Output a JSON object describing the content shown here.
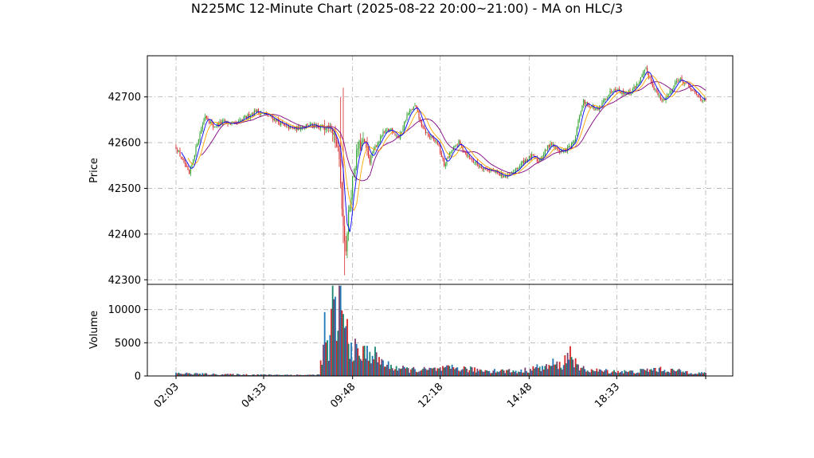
{
  "chart_data": {
    "type": "candlestick",
    "title": "N225MC 12-Minute Chart (2025-08-22 20:00~21:00) - MA on HLC/3",
    "price_panel": {
      "ylabel": "Price",
      "yticks": [
        42300,
        42400,
        42500,
        42600,
        42700
      ],
      "ylim": [
        42290,
        42790
      ],
      "grid": true
    },
    "volume_panel": {
      "ylabel": "Volume",
      "yticks": [
        0,
        5000,
        10000
      ],
      "ylim": [
        0,
        13800
      ],
      "grid": true
    },
    "x_ticks": [
      "02:03",
      "04:33",
      "09:48",
      "12:18",
      "14:48",
      "18:33"
    ],
    "colors": {
      "up": "#2ca02c",
      "down": "#d62728",
      "ma_fast": "#0000ff",
      "ma_mid": "#ffa500",
      "ma_slow": "#800080",
      "volume_a": "#1f77b4",
      "volume_b": "#d62728",
      "volume_c": "#17856f",
      "volume_d": "#7b3f6e"
    },
    "price_anchors": [
      [
        0,
        42590
      ],
      [
        5,
        42560
      ],
      [
        10,
        42530
      ],
      [
        16,
        42600
      ],
      [
        22,
        42660
      ],
      [
        28,
        42635
      ],
      [
        35,
        42645
      ],
      [
        45,
        42640
      ],
      [
        55,
        42660
      ],
      [
        60,
        42670
      ],
      [
        68,
        42660
      ],
      [
        75,
        42650
      ],
      [
        82,
        42635
      ],
      [
        90,
        42630
      ],
      [
        100,
        42640
      ],
      [
        108,
        42630
      ],
      [
        116,
        42650
      ],
      [
        120,
        42610
      ],
      [
        123,
        42560
      ],
      [
        126,
        42420
      ],
      [
        128,
        42370
      ],
      [
        130,
        42440
      ],
      [
        133,
        42520
      ],
      [
        137,
        42590
      ],
      [
        142,
        42600
      ],
      [
        146,
        42560
      ],
      [
        150,
        42590
      ],
      [
        156,
        42620
      ],
      [
        162,
        42630
      ],
      [
        168,
        42610
      ],
      [
        174,
        42660
      ],
      [
        180,
        42680
      ],
      [
        186,
        42630
      ],
      [
        192,
        42610
      ],
      [
        197,
        42600
      ],
      [
        202,
        42550
      ],
      [
        207,
        42580
      ],
      [
        213,
        42600
      ],
      [
        220,
        42570
      ],
      [
        228,
        42550
      ],
      [
        236,
        42540
      ],
      [
        244,
        42530
      ],
      [
        250,
        42525
      ],
      [
        256,
        42540
      ],
      [
        262,
        42560
      ],
      [
        268,
        42570
      ],
      [
        273,
        42560
      ],
      [
        278,
        42580
      ],
      [
        282,
        42600
      ],
      [
        287,
        42585
      ],
      [
        292,
        42580
      ],
      [
        296,
        42590
      ],
      [
        300,
        42600
      ],
      [
        304,
        42660
      ],
      [
        307,
        42690
      ],
      [
        312,
        42680
      ],
      [
        318,
        42670
      ],
      [
        324,
        42700
      ],
      [
        330,
        42720
      ],
      [
        336,
        42710
      ],
      [
        342,
        42710
      ],
      [
        348,
        42730
      ],
      [
        354,
        42760
      ],
      [
        360,
        42720
      ],
      [
        366,
        42690
      ],
      [
        372,
        42710
      ],
      [
        378,
        42740
      ],
      [
        384,
        42730
      ],
      [
        390,
        42710
      ],
      [
        394,
        42700
      ],
      [
        399,
        42690
      ]
    ],
    "volume_anchors": [
      [
        0,
        400
      ],
      [
        30,
        250
      ],
      [
        60,
        200
      ],
      [
        100,
        150
      ],
      [
        108,
        200
      ],
      [
        112,
        6500
      ],
      [
        115,
        3000
      ],
      [
        118,
        10000
      ],
      [
        121,
        8000
      ],
      [
        124,
        12700
      ],
      [
        126,
        8000
      ],
      [
        128,
        7200
      ],
      [
        131,
        4500
      ],
      [
        134,
        4000
      ],
      [
        138,
        3000
      ],
      [
        142,
        3400
      ],
      [
        148,
        3500
      ],
      [
        152,
        2500
      ],
      [
        160,
        1500
      ],
      [
        172,
        1000
      ],
      [
        185,
        900
      ],
      [
        200,
        1000
      ],
      [
        210,
        1200
      ],
      [
        225,
        900
      ],
      [
        240,
        800
      ],
      [
        260,
        700
      ],
      [
        270,
        1200
      ],
      [
        280,
        1300
      ],
      [
        284,
        1800
      ],
      [
        290,
        1500
      ],
      [
        294,
        2600
      ],
      [
        298,
        3800
      ],
      [
        302,
        1200
      ],
      [
        315,
        800
      ],
      [
        330,
        700
      ],
      [
        345,
        600
      ],
      [
        360,
        1000
      ],
      [
        375,
        800
      ],
      [
        390,
        500
      ],
      [
        399,
        400
      ]
    ]
  }
}
